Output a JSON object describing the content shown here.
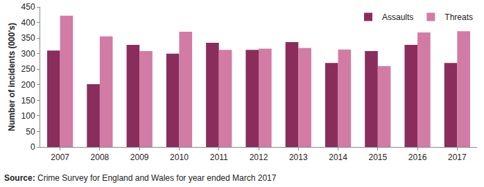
{
  "chart_data": {
    "type": "bar",
    "y_label": "Number of incidents (000's)",
    "source_label": "Source:",
    "source": "Crime Survey for England and Wales for year ended March 2017",
    "categories": [
      "2007",
      "2008",
      "2009",
      "2010",
      "2011",
      "2012",
      "2013",
      "2014",
      "2015",
      "2016",
      "2017"
    ],
    "series": [
      {
        "name": "Assaults",
        "color": "#8a2d5c",
        "values": [
          310,
          202,
          328,
          300,
          335,
          312,
          337,
          270,
          308,
          328,
          270
        ]
      },
      {
        "name": "Threats",
        "color": "#d27ba4",
        "values": [
          422,
          355,
          308,
          370,
          312,
          316,
          318,
          313,
          260,
          368,
          372
        ]
      }
    ],
    "ylim": [
      0,
      450
    ],
    "yticks": [
      0,
      50,
      100,
      150,
      200,
      250,
      300,
      350,
      400,
      450
    ],
    "grid": false,
    "legend": "top-right"
  }
}
